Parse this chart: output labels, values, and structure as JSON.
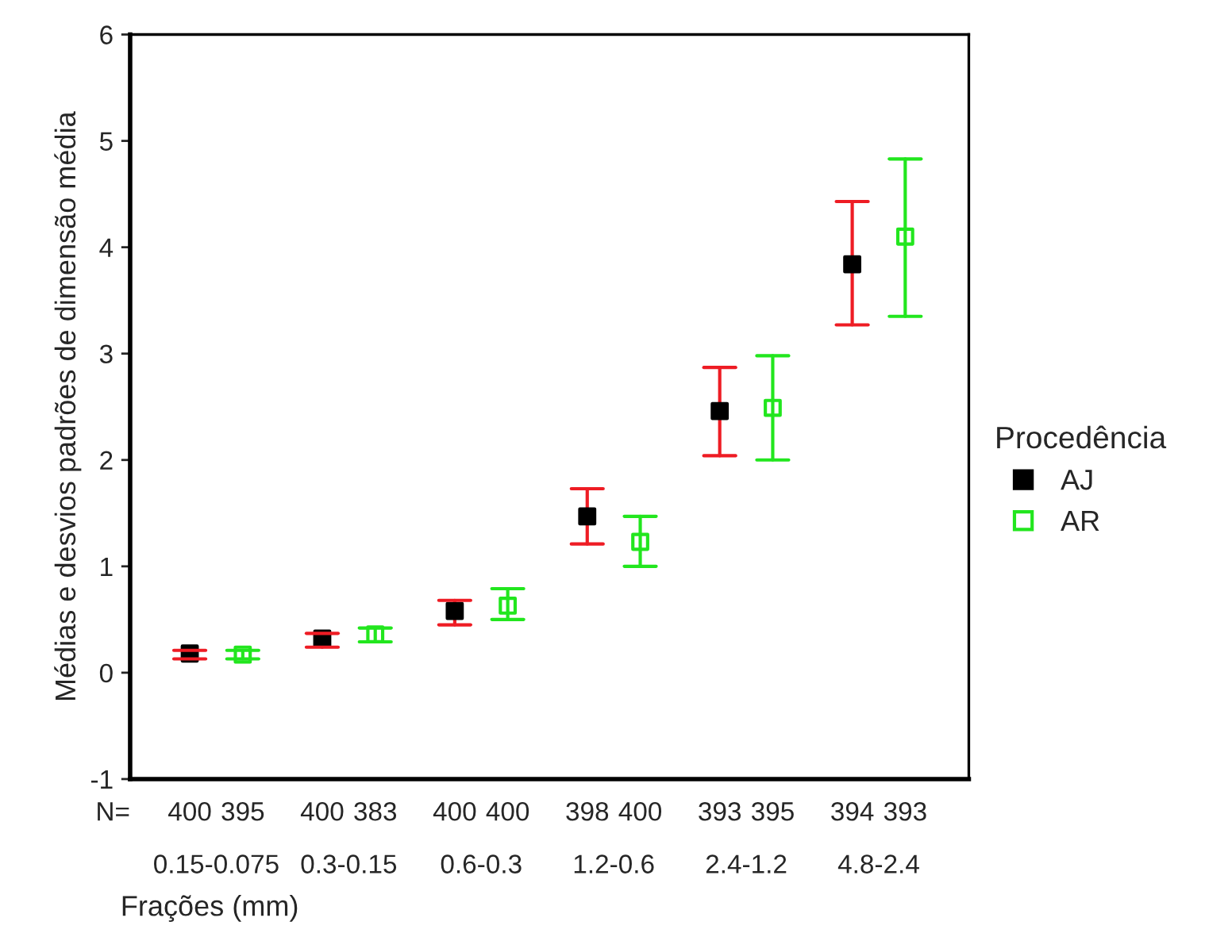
{
  "chart_data": {
    "type": "scatter",
    "xlabel": "Frações (mm)",
    "ylabel": "Médias e desvios padrões de dimensão média",
    "legend_title": "Procedência",
    "categories": [
      "0.15-0.075",
      "0.3-0.15",
      "0.6-0.3",
      "1.2-0.6",
      "2.4-1.2",
      "4.8-2.4"
    ],
    "series": [
      {
        "name": "AJ",
        "color": "#000000",
        "values": [
          0.18,
          0.32,
          0.58,
          1.47,
          2.46,
          3.84
        ],
        "errors": [
          [
            0.13,
            0.21
          ],
          [
            0.24,
            0.37
          ],
          [
            0.45,
            0.68
          ],
          [
            1.21,
            1.73
          ],
          [
            2.04,
            2.87
          ],
          [
            3.27,
            4.43
          ]
        ]
      },
      {
        "name": "AR",
        "color": "#22e61e",
        "values": [
          0.17,
          0.36,
          0.63,
          1.23,
          2.49,
          4.1
        ],
        "errors": [
          [
            0.13,
            0.21
          ],
          [
            0.29,
            0.42
          ],
          [
            0.5,
            0.79
          ],
          [
            1.0,
            1.47
          ],
          [
            2.0,
            2.98
          ],
          [
            3.35,
            4.83
          ]
        ]
      }
    ],
    "ylim": [
      -1,
      6
    ],
    "yticks": [
      -1,
      0,
      1,
      2,
      3,
      4,
      5,
      6
    ],
    "marker": "square",
    "legend": "right",
    "grid": false,
    "annotations": [
      "N=",
      "400",
      "395",
      "400",
      "383",
      "400",
      "400",
      "398",
      "400",
      "393",
      "395",
      "394",
      "393"
    ]
  }
}
